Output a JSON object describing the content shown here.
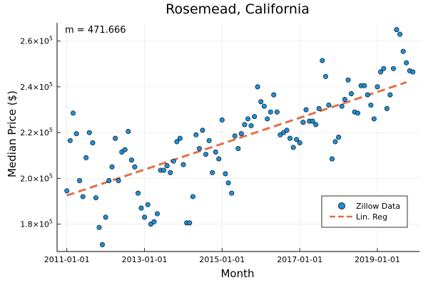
{
  "chart_data": {
    "type": "scatter",
    "title": "Rosemead, California",
    "xlabel": "Month",
    "ylabel": "Median Price ($)",
    "annotation": "m = 471.666",
    "x_tick_labels": [
      "2011-01-01",
      "2013-01-01",
      "2015-01-01",
      "2017-01-01",
      "2019-01-01"
    ],
    "x_tick_values": [
      "2011-01-01",
      "2013-01-01",
      "2015-01-01",
      "2017-01-01",
      "2019-01-01"
    ],
    "y_ticks": [
      180000,
      200000,
      220000,
      240000,
      260000
    ],
    "y_tick_mantissas": [
      "1.8",
      "2.0",
      "2.2",
      "2.4",
      "2.6"
    ],
    "y_tick_base": "×10",
    "y_tick_exponent": "5",
    "xlim": [
      "2010-10-01",
      "2020-02-01"
    ],
    "ylim": [
      168000,
      268000
    ],
    "grid": true,
    "legend": {
      "position": "bottom-right",
      "entries": [
        "Zillow Data",
        "Lin. Reg"
      ]
    },
    "colors": {
      "points": "#1f8fd6",
      "line": "#e0704a"
    },
    "series": [
      {
        "name": "Zillow Data",
        "kind": "scatter",
        "x": [
          "2011-01-01",
          "2011-02-01",
          "2011-03-01",
          "2011-04-01",
          "2011-05-01",
          "2011-06-01",
          "2011-07-01",
          "2011-08-01",
          "2011-09-01",
          "2011-10-01",
          "2011-11-01",
          "2011-12-01",
          "2012-01-01",
          "2012-02-01",
          "2012-03-01",
          "2012-04-01",
          "2012-05-01",
          "2012-06-01",
          "2012-07-01",
          "2012-08-01",
          "2012-09-01",
          "2012-10-01",
          "2012-11-01",
          "2012-12-01",
          "2013-01-01",
          "2013-02-01",
          "2013-03-01",
          "2013-04-01",
          "2013-05-01",
          "2013-06-01",
          "2013-07-01",
          "2013-08-01",
          "2013-09-01",
          "2013-10-01",
          "2013-11-01",
          "2013-12-01",
          "2014-01-01",
          "2014-02-01",
          "2014-03-01",
          "2014-04-01",
          "2014-05-01",
          "2014-06-01",
          "2014-07-01",
          "2014-08-01",
          "2014-09-01",
          "2014-10-01",
          "2014-11-01",
          "2014-12-01",
          "2015-01-01",
          "2015-02-01",
          "2015-03-01",
          "2015-04-01",
          "2015-05-01",
          "2015-06-01",
          "2015-07-01",
          "2015-08-01",
          "2015-09-01",
          "2015-10-01",
          "2015-11-01",
          "2015-12-01",
          "2016-01-01",
          "2016-02-01",
          "2016-03-01",
          "2016-04-01",
          "2016-05-01",
          "2016-06-01",
          "2016-07-01",
          "2016-08-01",
          "2016-09-01",
          "2016-10-01",
          "2016-11-01",
          "2016-12-01",
          "2017-01-01",
          "2017-02-01",
          "2017-03-01",
          "2017-04-01",
          "2017-05-01",
          "2017-06-01",
          "2017-07-01",
          "2017-08-01",
          "2017-09-01",
          "2017-10-01",
          "2017-11-01",
          "2017-12-01",
          "2018-01-01",
          "2018-02-01",
          "2018-03-01",
          "2018-04-01",
          "2018-05-01",
          "2018-06-01",
          "2018-07-01",
          "2018-08-01",
          "2018-09-01",
          "2018-10-01",
          "2018-11-01",
          "2018-12-01",
          "2019-01-01",
          "2019-02-01",
          "2019-03-01",
          "2019-04-01",
          "2019-05-01",
          "2019-06-01",
          "2019-07-01",
          "2019-08-01",
          "2019-09-01",
          "2019-10-01",
          "2019-11-01",
          "2019-12-01"
        ],
        "y": [
          194500,
          216500,
          228500,
          219500,
          199000,
          192000,
          209000,
          220000,
          215500,
          191500,
          178500,
          171000,
          183000,
          199000,
          205000,
          217500,
          199000,
          211500,
          212500,
          220500,
          208000,
          205000,
          193500,
          187000,
          183000,
          188500,
          180000,
          181000,
          184500,
          203500,
          203500,
          205500,
          202500,
          207500,
          216000,
          217500,
          206000,
          180500,
          180500,
          192000,
          219000,
          213000,
          221000,
          210500,
          216500,
          202500,
          211500,
          208500,
          225500,
          202000,
          198000,
          193500,
          218500,
          213000,
          219500,
          223500,
          226000,
          223000,
          227000,
          240000,
          233500,
          231500,
          226000,
          229000,
          236500,
          229000,
          219000,
          220000,
          221000,
          217500,
          213500,
          217000,
          215500,
          224500,
          230000,
          225000,
          225000,
          223500,
          230500,
          251500,
          244500,
          232000,
          208500,
          216000,
          218000,
          231500,
          234500,
          243000,
          237000,
          229000,
          228500,
          240500,
          240500,
          236500,
          232000,
          226000,
          240000,
          246500,
          248000,
          230500,
          236500,
          248000,
          265000,
          263000,
          255500,
          250500,
          247000,
          246500
        ]
      },
      {
        "name": "Lin. Reg",
        "kind": "line",
        "x": [
          "2011-01-01",
          "2019-10-01"
        ],
        "y": [
          192500,
          242000
        ]
      }
    ]
  }
}
